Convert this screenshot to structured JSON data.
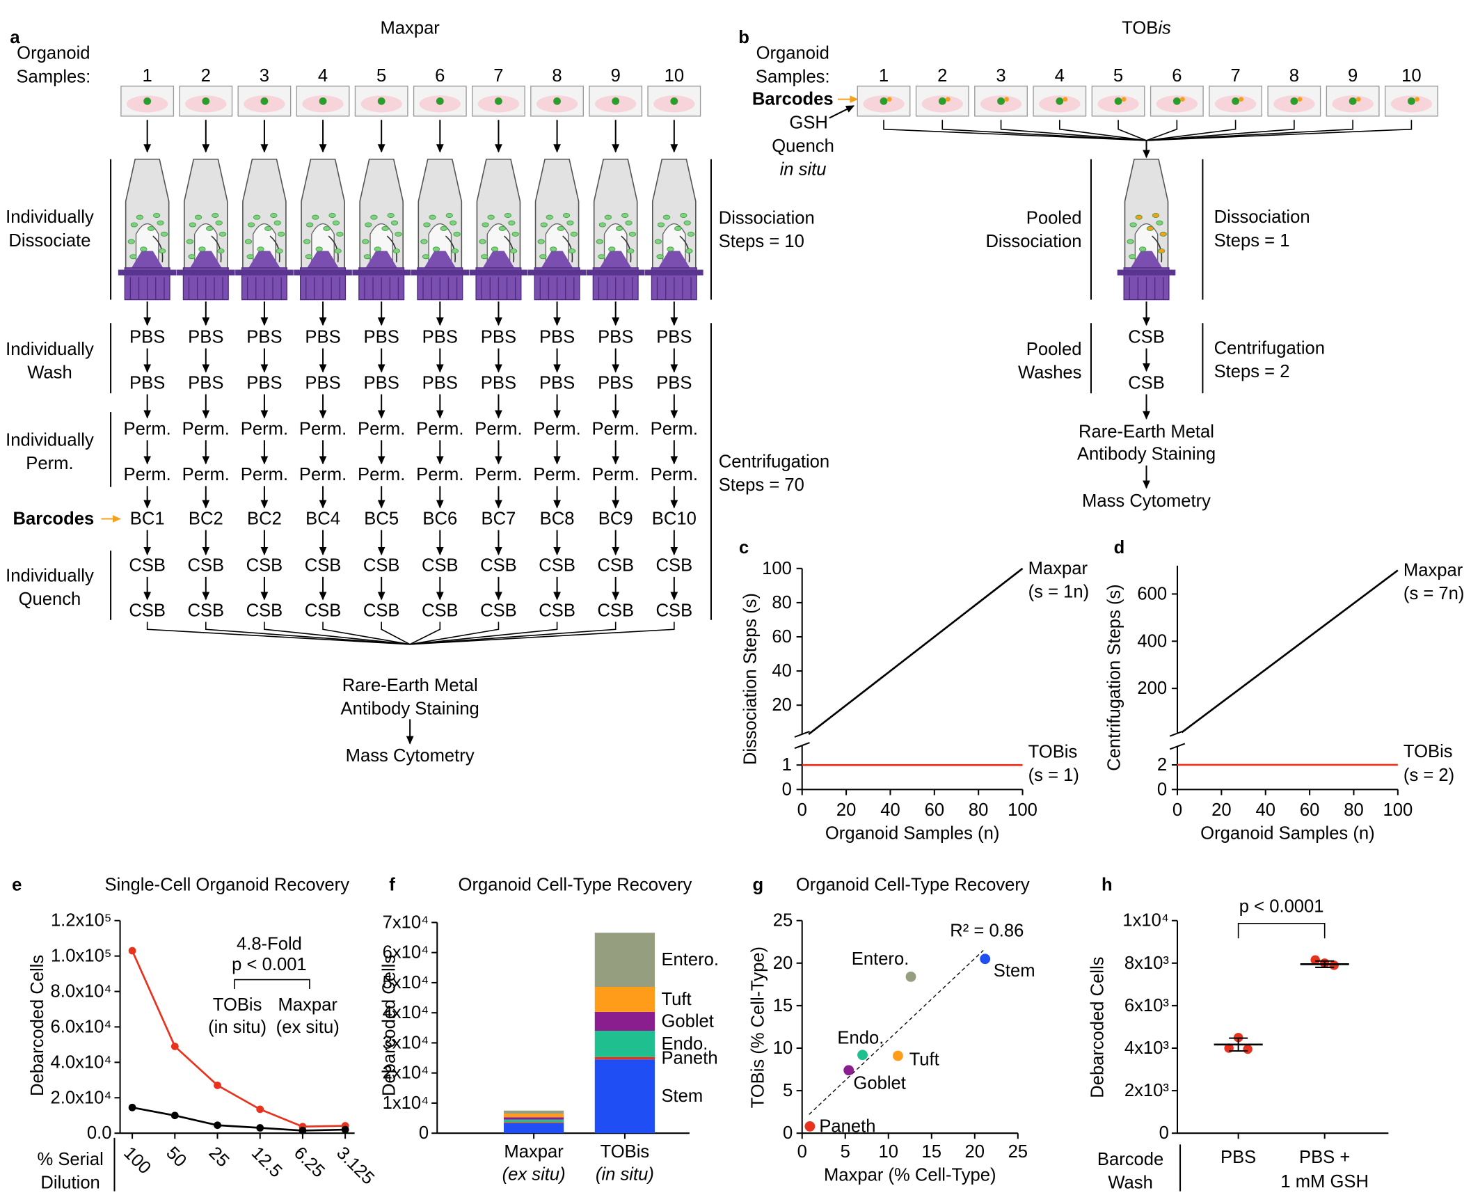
{
  "panel_a": {
    "letter": "a",
    "title": "Maxpar",
    "samples_label": [
      "Organoid",
      "Samples:"
    ],
    "samples": [
      "1",
      "2",
      "3",
      "4",
      "5",
      "6",
      "7",
      "8",
      "9",
      "10"
    ],
    "dissociate_label": [
      "Individually",
      "Dissociate"
    ],
    "dissociation_steps": [
      "Dissociation",
      "Steps = 10"
    ],
    "wash_label": [
      "Individually",
      "Wash"
    ],
    "wash_steps": [
      "PBS",
      "PBS"
    ],
    "perm_label": [
      "Individually",
      "Perm."
    ],
    "perm_steps": [
      "Perm.",
      "Perm."
    ],
    "barcodes_label": "Barcodes",
    "barcodes": [
      "BC1",
      "BC2",
      "BC2",
      "BC4",
      "BC5",
      "BC6",
      "BC7",
      "BC8",
      "BC9",
      "BC10"
    ],
    "quench_label": [
      "Individually",
      "Quench"
    ],
    "quench_steps": [
      "CSB",
      "CSB"
    ],
    "centrifugation_steps": [
      "Centrifugation",
      "Steps = 70"
    ],
    "staining": [
      "Rare-Earth Metal",
      "Antibody Staining"
    ],
    "readout": "Mass Cytometry"
  },
  "panel_b": {
    "letter": "b",
    "title": [
      "TOB",
      "is"
    ],
    "samples_label": [
      "Organoid",
      "Samples:"
    ],
    "samples": [
      "1",
      "2",
      "3",
      "4",
      "5",
      "6",
      "7",
      "8",
      "9",
      "10"
    ],
    "barcodes_label": "Barcodes",
    "quench_note": [
      "GSH",
      "Quench",
      "in situ"
    ],
    "dissociate_label": [
      "Pooled",
      "Dissociation"
    ],
    "dissociation_steps": [
      "Dissociation",
      "Steps = 1"
    ],
    "wash_label": [
      "Pooled",
      "Washes"
    ],
    "wash_steps": [
      "CSB",
      "CSB"
    ],
    "centrifugation_steps": [
      "Centrifugation",
      "Steps = 2"
    ],
    "staining": [
      "Rare-Earth Metal",
      "Antibody Staining"
    ],
    "readout": "Mass Cytometry"
  },
  "chart_data": [
    {
      "label": "c",
      "type": "broken_line",
      "ylabel": "Dissociation Steps (s)",
      "xlabel": "Organoid Samples (n)",
      "xlim": [
        0,
        100
      ],
      "xticks": [
        0,
        20,
        40,
        60,
        80,
        100
      ],
      "y_segments": [
        {
          "ylim": [
            0,
            1.8
          ],
          "yticks": [
            0,
            1
          ]
        },
        {
          "ylim": [
            3,
            100
          ],
          "yticks": [
            20,
            40,
            60,
            80,
            100
          ]
        }
      ],
      "series": [
        {
          "name": "Maxpar",
          "note": "(s = 1n)",
          "color": "#000000",
          "x": [
            3,
            100
          ],
          "values": [
            3,
            100
          ]
        },
        {
          "name": "TOBis",
          "note": "(s = 1)",
          "color": "#e8321e",
          "x": [
            0,
            100
          ],
          "values": [
            1,
            1
          ]
        }
      ]
    },
    {
      "label": "d",
      "type": "broken_line",
      "ylabel": "Centrifugation Steps (s)",
      "xlabel": "Organoid Samples (n)",
      "xlim": [
        0,
        100
      ],
      "xticks": [
        0,
        20,
        40,
        60,
        80,
        100
      ],
      "y_segments": [
        {
          "ylim": [
            0,
            3.5
          ],
          "yticks": [
            0,
            2
          ]
        },
        {
          "ylim": [
            10,
            720
          ],
          "yticks": [
            200,
            400,
            600
          ]
        }
      ],
      "series": [
        {
          "name": "Maxpar",
          "note": "(s = 7n)",
          "color": "#000000",
          "x": [
            2,
            100
          ],
          "values": [
            14,
            700
          ]
        },
        {
          "name": "TOBis",
          "note": "(s = 2)",
          "color": "#e8321e",
          "x": [
            0,
            100
          ],
          "values": [
            2,
            2
          ]
        }
      ]
    },
    {
      "label": "e",
      "type": "line",
      "title": "Single-Cell Organoid Recovery",
      "ylabel": "Debarcoded Cells",
      "xlabel": [
        "% Serial",
        "Dilution"
      ],
      "categories": [
        "100",
        "50",
        "25",
        "12.5",
        "6.25",
        "3.125"
      ],
      "ylim": [
        0,
        120000
      ],
      "yticks": [
        {
          "value": 0,
          "label": "0.0"
        },
        {
          "value": 20000,
          "label": "2.0x10⁴"
        },
        {
          "value": 40000,
          "label": "4.0x10⁴"
        },
        {
          "value": 60000,
          "label": "6.0x10⁴"
        },
        {
          "value": 80000,
          "label": "8.0x10⁴"
        },
        {
          "value": 100000,
          "label": "1.0x10⁵"
        },
        {
          "value": 120000,
          "label": "1.2x10⁵"
        }
      ],
      "series": [
        {
          "name": "TOBis",
          "note": "(in situ)",
          "color": "#e8321e",
          "values": [
            103000,
            49000,
            27000,
            13500,
            3700,
            4200
          ]
        },
        {
          "name": "Maxpar",
          "note": "(ex situ)",
          "color": "#000000",
          "values": [
            14500,
            10000,
            4500,
            3000,
            1500,
            2000
          ]
        }
      ],
      "annotation": [
        "4.8-Fold",
        "p < 0.001"
      ]
    },
    {
      "label": "f",
      "type": "stacked_bar",
      "title": "Organoid Cell-Type Recovery",
      "ylabel": "Debarcoded Cells",
      "categories": [
        "Maxpar",
        "TOBis"
      ],
      "category_notes": [
        "(ex situ)",
        "(in situ)"
      ],
      "category_colors": [
        "#000000",
        "#e8321e"
      ],
      "ylim": [
        0,
        70000
      ],
      "yticks": [
        0,
        {
          "value": 10000,
          "label": "1x10⁴"
        },
        {
          "value": 20000,
          "label": "2x10⁴"
        },
        {
          "value": 30000,
          "label": "3x10⁴"
        },
        {
          "value": 40000,
          "label": "4x10⁴"
        },
        {
          "value": 50000,
          "label": "5x10⁴"
        },
        {
          "value": 60000,
          "label": "6x10⁴"
        },
        {
          "value": 70000,
          "label": "7x10⁴"
        }
      ],
      "series": [
        {
          "name": "Stem",
          "color": "#1f4ef5",
          "values": [
            3300,
            24500
          ]
        },
        {
          "name": "Paneth",
          "color": "#e8321e",
          "values": [
            300,
            800
          ]
        },
        {
          "name": "Endo.",
          "color": "#1fbf8f",
          "values": [
            900,
            8700
          ]
        },
        {
          "name": "Goblet",
          "color": "#8b1e8f",
          "values": [
            800,
            6300
          ]
        },
        {
          "name": "Tuft",
          "color": "#ff9c1a",
          "values": [
            1200,
            8300
          ]
        },
        {
          "name": "Entero.",
          "color": "#959e7e",
          "values": [
            1000,
            18000
          ]
        }
      ]
    },
    {
      "label": "g",
      "type": "scatter",
      "title": "Organoid Cell-Type Recovery",
      "xlabel": "Maxpar (% Cell-Type)",
      "ylabel": "TOBis (% Cell-Type)",
      "xlim": [
        0,
        25
      ],
      "xticks": [
        0,
        5,
        10,
        15,
        20,
        25
      ],
      "ylim": [
        0,
        25
      ],
      "yticks": [
        0,
        5,
        10,
        15,
        20,
        25
      ],
      "points": [
        {
          "name": "Paneth",
          "color": "#e8321e",
          "x": 0.9,
          "y": 0.8
        },
        {
          "name": "Goblet",
          "color": "#8b1e8f",
          "x": 5.4,
          "y": 7.4
        },
        {
          "name": "Endo.",
          "color": "#1fbf8f",
          "x": 7.0,
          "y": 9.2
        },
        {
          "name": "Tuft",
          "color": "#ff9c1a",
          "x": 11.1,
          "y": 9.1
        },
        {
          "name": "Entero.",
          "color": "#959e7e",
          "x": 12.6,
          "y": 18.4
        },
        {
          "name": "Stem",
          "color": "#1f4ef5",
          "x": 21.2,
          "y": 20.5
        }
      ],
      "fit": {
        "x": [
          0.8,
          21
        ],
        "values": [
          2.2,
          21.5
        ]
      },
      "r2": "R² = 0.86"
    },
    {
      "label": "h",
      "type": "dot",
      "ylabel": "Debarcoded Cells",
      "xlabel": [
        "Barcode",
        "Wash"
      ],
      "categories": [
        [
          "PBS"
        ],
        [
          "PBS +",
          "1 mM GSH"
        ]
      ],
      "color": "#e8321e",
      "ylim": [
        0,
        10000
      ],
      "yticks": [
        0,
        {
          "value": 2000,
          "label": "2x10³"
        },
        {
          "value": 4000,
          "label": "4x10³"
        },
        {
          "value": 6000,
          "label": "6x10³"
        },
        {
          "value": 8000,
          "label": "8x10³"
        },
        {
          "value": 10000,
          "label": "1x10⁴"
        }
      ],
      "points": [
        [
          4000,
          4500,
          3950
        ],
        [
          8150,
          8000,
          7900
        ]
      ],
      "means": [
        4170,
        7950
      ],
      "errors": [
        300,
        150
      ],
      "significance": "p < 0.0001"
    }
  ]
}
